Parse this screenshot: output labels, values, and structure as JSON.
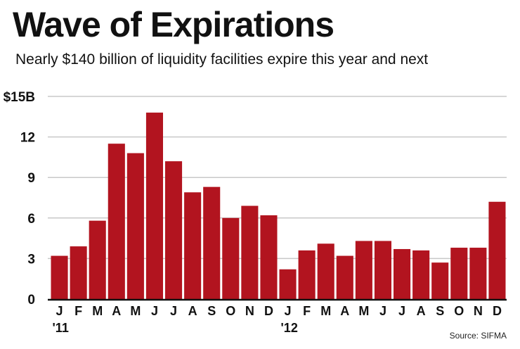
{
  "title": "Wave of Expirations",
  "subtitle": "Nearly $140 billion of liquidity facilities expire this year and next",
  "source": "Source: SIFMA",
  "colors": {
    "bar": "#b2141f",
    "grid": "#c8c8c8",
    "axis": "#111111"
  },
  "chart_data": {
    "type": "bar",
    "title": "Wave of Expirations",
    "subtitle": "Nearly $140 billion of liquidity facilities expire this year and next",
    "xlabel": "",
    "ylabel": "",
    "ylim": [
      0,
      15
    ],
    "yticks": [
      0,
      3,
      6,
      9,
      12,
      15
    ],
    "ytick_labels": [
      "0",
      "3",
      "6",
      "9",
      "12",
      "$15B"
    ],
    "grid": true,
    "categories": [
      "J",
      "F",
      "M",
      "A",
      "M",
      "J",
      "J",
      "A",
      "S",
      "O",
      "N",
      "D",
      "J",
      "F",
      "M",
      "A",
      "M",
      "J",
      "J",
      "A",
      "S",
      "O",
      "N",
      "D"
    ],
    "year_labels": [
      {
        "label": "'11",
        "index": 0
      },
      {
        "label": "'12",
        "index": 12
      }
    ],
    "values": [
      3.2,
      3.9,
      5.8,
      11.5,
      10.8,
      13.8,
      10.2,
      7.9,
      8.3,
      6.0,
      6.9,
      6.2,
      2.2,
      3.6,
      4.1,
      3.2,
      4.3,
      4.3,
      3.7,
      3.6,
      2.7,
      3.8,
      3.8,
      7.2
    ]
  }
}
